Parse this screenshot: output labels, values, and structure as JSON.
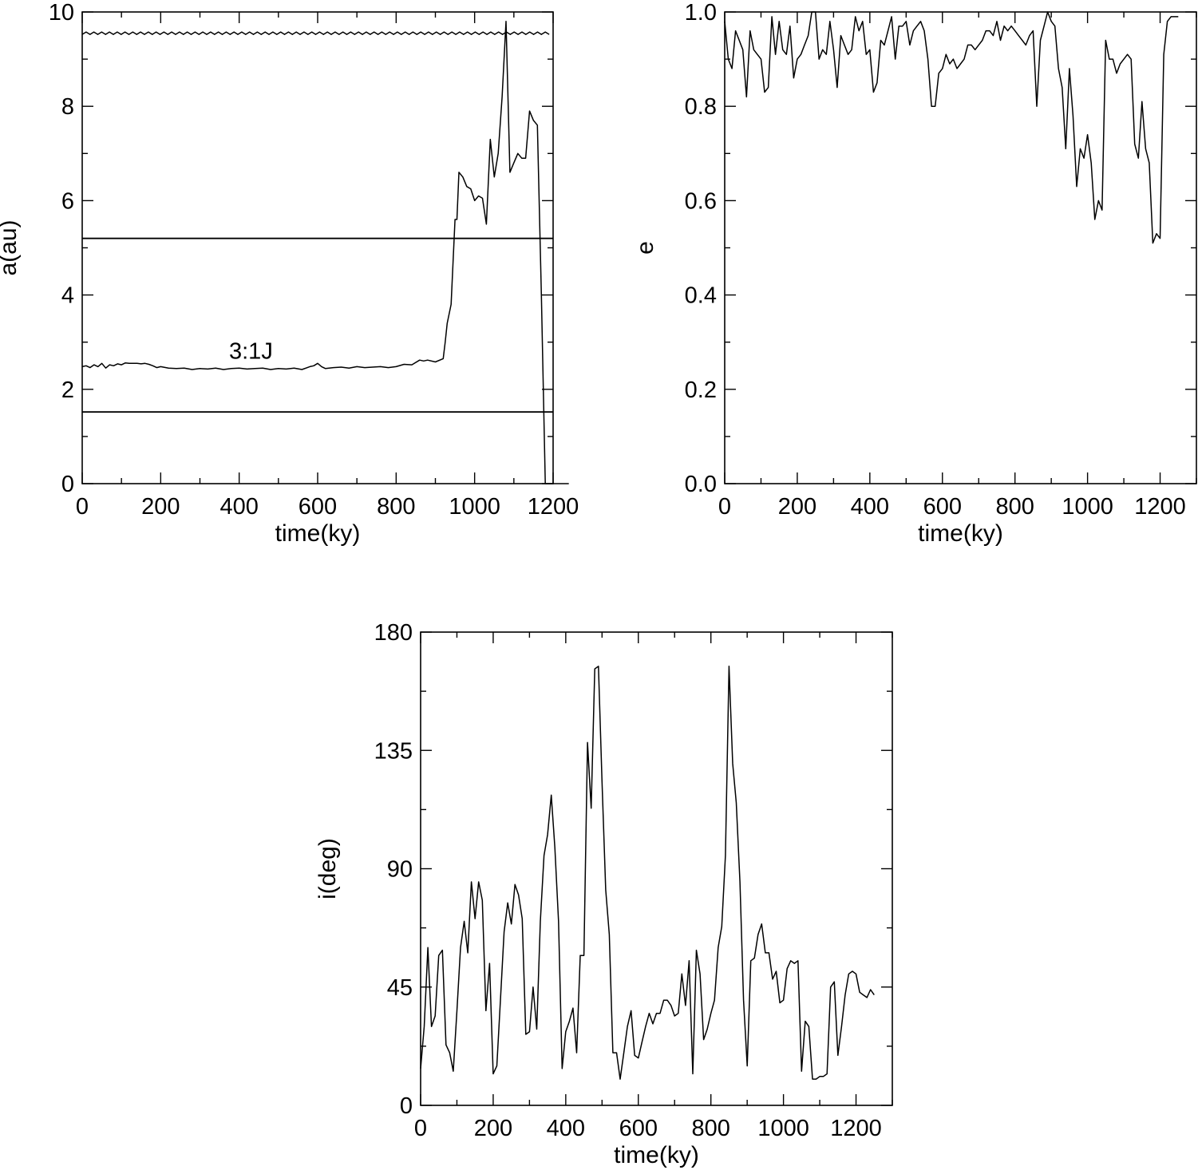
{
  "chart_data": [
    {
      "type": "line",
      "xlabel": "time(ky)",
      "ylabel": "a(au)",
      "xlim": [
        0,
        1200
      ],
      "ylim": [
        0,
        10
      ],
      "xticks": [
        "0",
        "200",
        "400",
        "600",
        "800",
        "1000",
        "1200"
      ],
      "yticks": [
        "0",
        "2",
        "4",
        "6",
        "8",
        "10"
      ],
      "grid": false,
      "annotations": [
        {
          "text": "3:1J",
          "x": 430,
          "y": 2.65
        }
      ],
      "reference_lines": [
        {
          "y": 9.55,
          "x": [
            0,
            1190
          ],
          "wiggle": true
        },
        {
          "y": 5.2,
          "x": [
            0,
            1200
          ]
        },
        {
          "y": 1.52,
          "x": [
            0,
            1200
          ]
        }
      ],
      "series": [
        {
          "x": [
            0,
            10,
            20,
            30,
            40,
            50,
            60,
            70,
            80,
            90,
            100,
            110,
            120,
            130,
            140,
            150,
            160,
            170,
            180,
            190,
            200,
            220,
            240,
            260,
            280,
            300,
            320,
            340,
            360,
            380,
            400,
            420,
            440,
            460,
            480,
            500,
            520,
            540,
            560,
            580,
            590,
            600,
            610,
            620,
            640,
            660,
            680,
            700,
            720,
            740,
            760,
            780,
            800,
            820,
            840,
            860,
            870,
            880,
            900,
            920,
            925,
            930,
            940,
            950,
            955,
            960,
            970,
            980,
            990,
            1000,
            1010,
            1020,
            1030,
            1040,
            1050,
            1060,
            1070,
            1080,
            1090,
            1100,
            1110,
            1120,
            1130,
            1140,
            1150,
            1160,
            1170,
            1180,
            1190,
            1200,
            1210,
            1240
          ],
          "y": [
            2.48,
            2.5,
            2.46,
            2.52,
            2.48,
            2.55,
            2.45,
            2.52,
            2.5,
            2.54,
            2.52,
            2.56,
            2.55,
            2.55,
            2.55,
            2.54,
            2.55,
            2.53,
            2.5,
            2.46,
            2.48,
            2.45,
            2.44,
            2.45,
            2.42,
            2.44,
            2.43,
            2.45,
            2.42,
            2.44,
            2.45,
            2.43,
            2.44,
            2.45,
            2.42,
            2.44,
            2.43,
            2.45,
            2.42,
            2.48,
            2.5,
            2.55,
            2.48,
            2.44,
            2.46,
            2.47,
            2.45,
            2.48,
            2.46,
            2.47,
            2.48,
            2.46,
            2.48,
            2.53,
            2.52,
            2.62,
            2.6,
            2.62,
            2.58,
            2.65,
            3.0,
            3.4,
            3.8,
            5.6,
            5.6,
            6.6,
            6.5,
            6.3,
            6.25,
            6.0,
            6.1,
            6.05,
            5.5,
            7.3,
            6.5,
            7.0,
            8.2,
            9.8,
            6.6,
            6.8,
            7.0,
            6.9,
            6.9,
            7.9,
            7.7,
            7.6,
            4.0,
            0.0,
            0.0,
            0.0,
            0.0,
            0.0
          ]
        }
      ]
    },
    {
      "type": "line",
      "xlabel": "time(ky)",
      "ylabel": "e",
      "xlim": [
        0,
        1300
      ],
      "ylim": [
        0.0,
        1.0
      ],
      "xticks": [
        "0",
        "200",
        "400",
        "600",
        "800",
        "1000",
        "1200"
      ],
      "yticks": [
        "0.0",
        "0.2",
        "0.4",
        "0.6",
        "0.8",
        "1.0"
      ],
      "grid": false,
      "series": [
        {
          "x": [
            0,
            10,
            20,
            30,
            40,
            50,
            60,
            70,
            80,
            90,
            100,
            110,
            120,
            130,
            140,
            150,
            160,
            170,
            180,
            190,
            200,
            210,
            220,
            230,
            240,
            250,
            260,
            270,
            280,
            290,
            300,
            310,
            320,
            330,
            340,
            350,
            360,
            370,
            380,
            390,
            400,
            410,
            420,
            430,
            440,
            450,
            460,
            470,
            480,
            490,
            500,
            510,
            520,
            530,
            540,
            550,
            560,
            570,
            580,
            590,
            600,
            610,
            620,
            630,
            640,
            650,
            660,
            670,
            680,
            690,
            700,
            710,
            720,
            730,
            740,
            750,
            760,
            770,
            780,
            790,
            800,
            810,
            820,
            830,
            840,
            850,
            860,
            870,
            880,
            890,
            900,
            910,
            920,
            930,
            940,
            950,
            960,
            970,
            980,
            990,
            1000,
            1010,
            1020,
            1030,
            1040,
            1050,
            1060,
            1070,
            1080,
            1090,
            1100,
            1110,
            1120,
            1130,
            1140,
            1150,
            1160,
            1170,
            1180,
            1190,
            1200,
            1210,
            1220,
            1230,
            1240,
            1250
          ],
          "y": [
            0.98,
            0.9,
            0.88,
            0.96,
            0.94,
            0.92,
            0.82,
            0.96,
            0.92,
            0.91,
            0.9,
            0.83,
            0.84,
            0.99,
            0.91,
            0.98,
            0.92,
            0.91,
            0.97,
            0.86,
            0.9,
            0.91,
            0.93,
            0.95,
            1.0,
            1.0,
            0.9,
            0.92,
            0.91,
            0.98,
            0.92,
            0.84,
            0.95,
            0.93,
            0.91,
            0.92,
            0.99,
            0.96,
            0.98,
            0.91,
            0.92,
            0.83,
            0.85,
            0.94,
            0.93,
            0.96,
            0.99,
            0.9,
            0.97,
            0.97,
            0.98,
            0.93,
            0.96,
            0.97,
            0.98,
            0.96,
            0.9,
            0.8,
            0.8,
            0.87,
            0.88,
            0.91,
            0.89,
            0.9,
            0.88,
            0.89,
            0.9,
            0.93,
            0.93,
            0.92,
            0.93,
            0.94,
            0.96,
            0.96,
            0.95,
            0.98,
            0.94,
            0.97,
            0.96,
            0.97,
            0.96,
            0.95,
            0.94,
            0.93,
            0.95,
            0.96,
            0.8,
            0.94,
            0.97,
            1.0,
            0.98,
            0.97,
            0.88,
            0.84,
            0.71,
            0.88,
            0.78,
            0.63,
            0.71,
            0.69,
            0.74,
            0.68,
            0.56,
            0.6,
            0.58,
            0.94,
            0.9,
            0.9,
            0.87,
            0.89,
            0.9,
            0.91,
            0.9,
            0.72,
            0.69,
            0.81,
            0.71,
            0.68,
            0.51,
            0.53,
            0.52,
            0.91,
            0.98,
            0.99,
            0.99,
            0.99
          ]
        }
      ]
    },
    {
      "type": "line",
      "xlabel": "time(ky)",
      "ylabel": "i(deg)",
      "xlim": [
        0,
        1300
      ],
      "ylim": [
        0,
        180
      ],
      "xticks": [
        "0",
        "200",
        "400",
        "600",
        "800",
        "1000",
        "1200"
      ],
      "yticks": [
        "0",
        "45",
        "90",
        "135",
        "180"
      ],
      "grid": false,
      "series": [
        {
          "x": [
            0,
            10,
            20,
            30,
            40,
            50,
            60,
            70,
            80,
            90,
            100,
            110,
            120,
            130,
            140,
            150,
            160,
            170,
            180,
            190,
            200,
            210,
            220,
            230,
            240,
            250,
            260,
            270,
            280,
            290,
            300,
            310,
            320,
            330,
            340,
            350,
            360,
            370,
            380,
            390,
            400,
            410,
            420,
            430,
            440,
            450,
            460,
            470,
            480,
            490,
            500,
            510,
            520,
            530,
            540,
            550,
            560,
            570,
            580,
            590,
            600,
            610,
            620,
            630,
            640,
            650,
            660,
            670,
            680,
            690,
            700,
            710,
            720,
            730,
            740,
            750,
            760,
            770,
            780,
            790,
            800,
            810,
            820,
            830,
            840,
            850,
            860,
            870,
            880,
            890,
            900,
            910,
            920,
            930,
            940,
            950,
            960,
            970,
            980,
            990,
            1000,
            1010,
            1020,
            1030,
            1040,
            1050,
            1060,
            1070,
            1080,
            1090,
            1100,
            1110,
            1120,
            1130,
            1140,
            1150,
            1160,
            1170,
            1180,
            1190,
            1200,
            1210,
            1220,
            1230,
            1240,
            1250
          ],
          "y": [
            14,
            30,
            60,
            30,
            34,
            57,
            59,
            23,
            20,
            13,
            36,
            60,
            70,
            58,
            85,
            71,
            85,
            78,
            36,
            54,
            12,
            15,
            40,
            66,
            77,
            69,
            84,
            80,
            71,
            27,
            28,
            45,
            29,
            70,
            95,
            103,
            118,
            98,
            70,
            14,
            28,
            32,
            37,
            20,
            57,
            57,
            138,
            113,
            166,
            167,
            123,
            82,
            65,
            20,
            20,
            10,
            20,
            30,
            36,
            19,
            18,
            24,
            30,
            35,
            31,
            35,
            35,
            40,
            40,
            38,
            34,
            35,
            50,
            38,
            55,
            12,
            59,
            50,
            25,
            29,
            35,
            40,
            60,
            68,
            95,
            167,
            130,
            115,
            85,
            40,
            15,
            55,
            56,
            65,
            69,
            58,
            58,
            48,
            51,
            39,
            40,
            52,
            55,
            54,
            55,
            13,
            32,
            30,
            10,
            10,
            11,
            11,
            12,
            45,
            47,
            19,
            30,
            42,
            50,
            51,
            50,
            43,
            42,
            41,
            44,
            42
          ]
        }
      ]
    }
  ]
}
